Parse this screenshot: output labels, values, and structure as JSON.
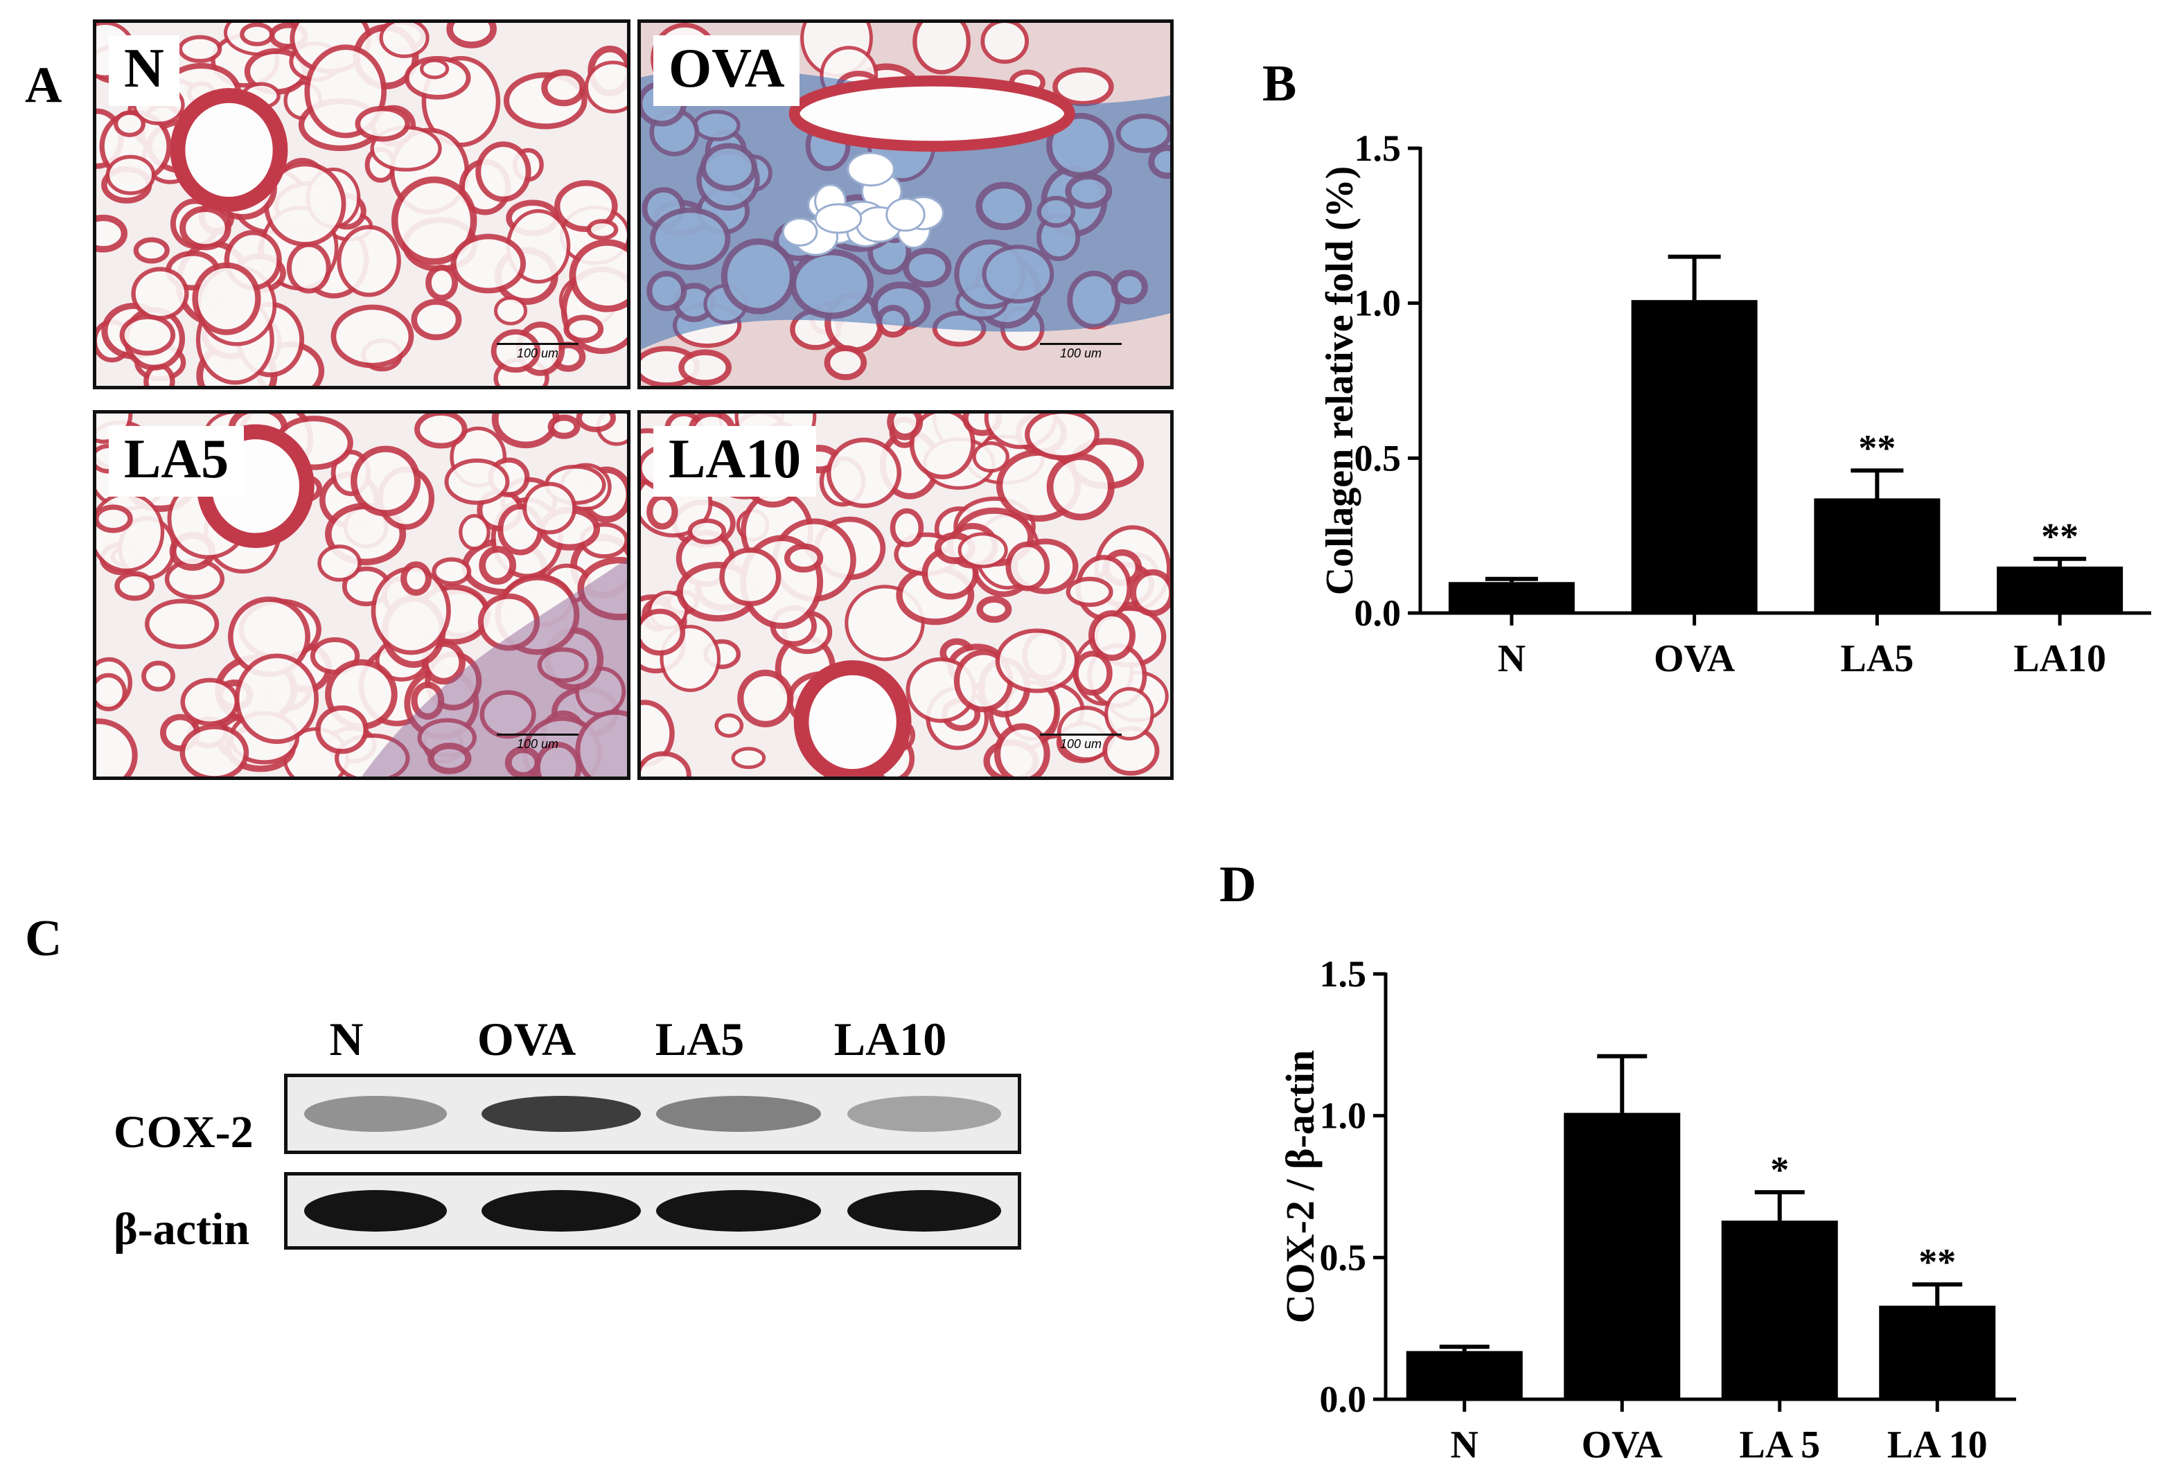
{
  "panel_labels": {
    "a": "A",
    "b": "B",
    "c": "C",
    "d": "D"
  },
  "micrographs": [
    {
      "label": "N",
      "scale": "100 um",
      "stain": "normal"
    },
    {
      "label": "OVA",
      "scale": "100 um",
      "stain": "fibrotic"
    },
    {
      "label": "LA5",
      "scale": "100 um",
      "stain": "mild"
    },
    {
      "label": "LA10",
      "scale": "100 um",
      "stain": "normal"
    }
  ],
  "western_blot": {
    "lanes": [
      "N",
      "OVA",
      "LA5",
      "LA10"
    ],
    "rows": [
      {
        "label": "COX-2",
        "intensity": [
          0.45,
          0.95,
          0.55,
          0.35
        ]
      },
      {
        "label": "β-actin",
        "intensity": [
          1.0,
          1.0,
          1.0,
          1.0
        ]
      }
    ]
  },
  "colors": {
    "bar": "#000000",
    "axis": "#000000",
    "tissue": "#c23a4a",
    "collagen": "#3a6fb5"
  },
  "chart_data": [
    {
      "type": "bar",
      "panel": "B",
      "categories": [
        "N",
        "OVA",
        "LA5",
        "LA10"
      ],
      "values": [
        0.1,
        1.01,
        0.37,
        0.15
      ],
      "errors": [
        0.01,
        0.14,
        0.09,
        0.025
      ],
      "significance": [
        "",
        "",
        "**",
        "**"
      ],
      "xlabel": "",
      "ylabel": "Collagen relative fold (%)",
      "ylim": [
        0,
        1.5
      ],
      "yticks": [
        "0.0",
        "0.5",
        "1.0",
        "1.5"
      ],
      "grid": false
    },
    {
      "type": "bar",
      "panel": "D",
      "categories": [
        "N",
        "OVA",
        "LA 5",
        "LA 10"
      ],
      "values": [
        0.17,
        1.01,
        0.63,
        0.33
      ],
      "errors": [
        0.015,
        0.2,
        0.1,
        0.075
      ],
      "significance": [
        "",
        "",
        "*",
        "**"
      ],
      "xlabel": "",
      "ylabel": "COX-2 / β-actin",
      "ylim": [
        0,
        1.5
      ],
      "yticks": [
        "0.0",
        "0.5",
        "1.0",
        "1.5"
      ],
      "grid": false
    }
  ]
}
